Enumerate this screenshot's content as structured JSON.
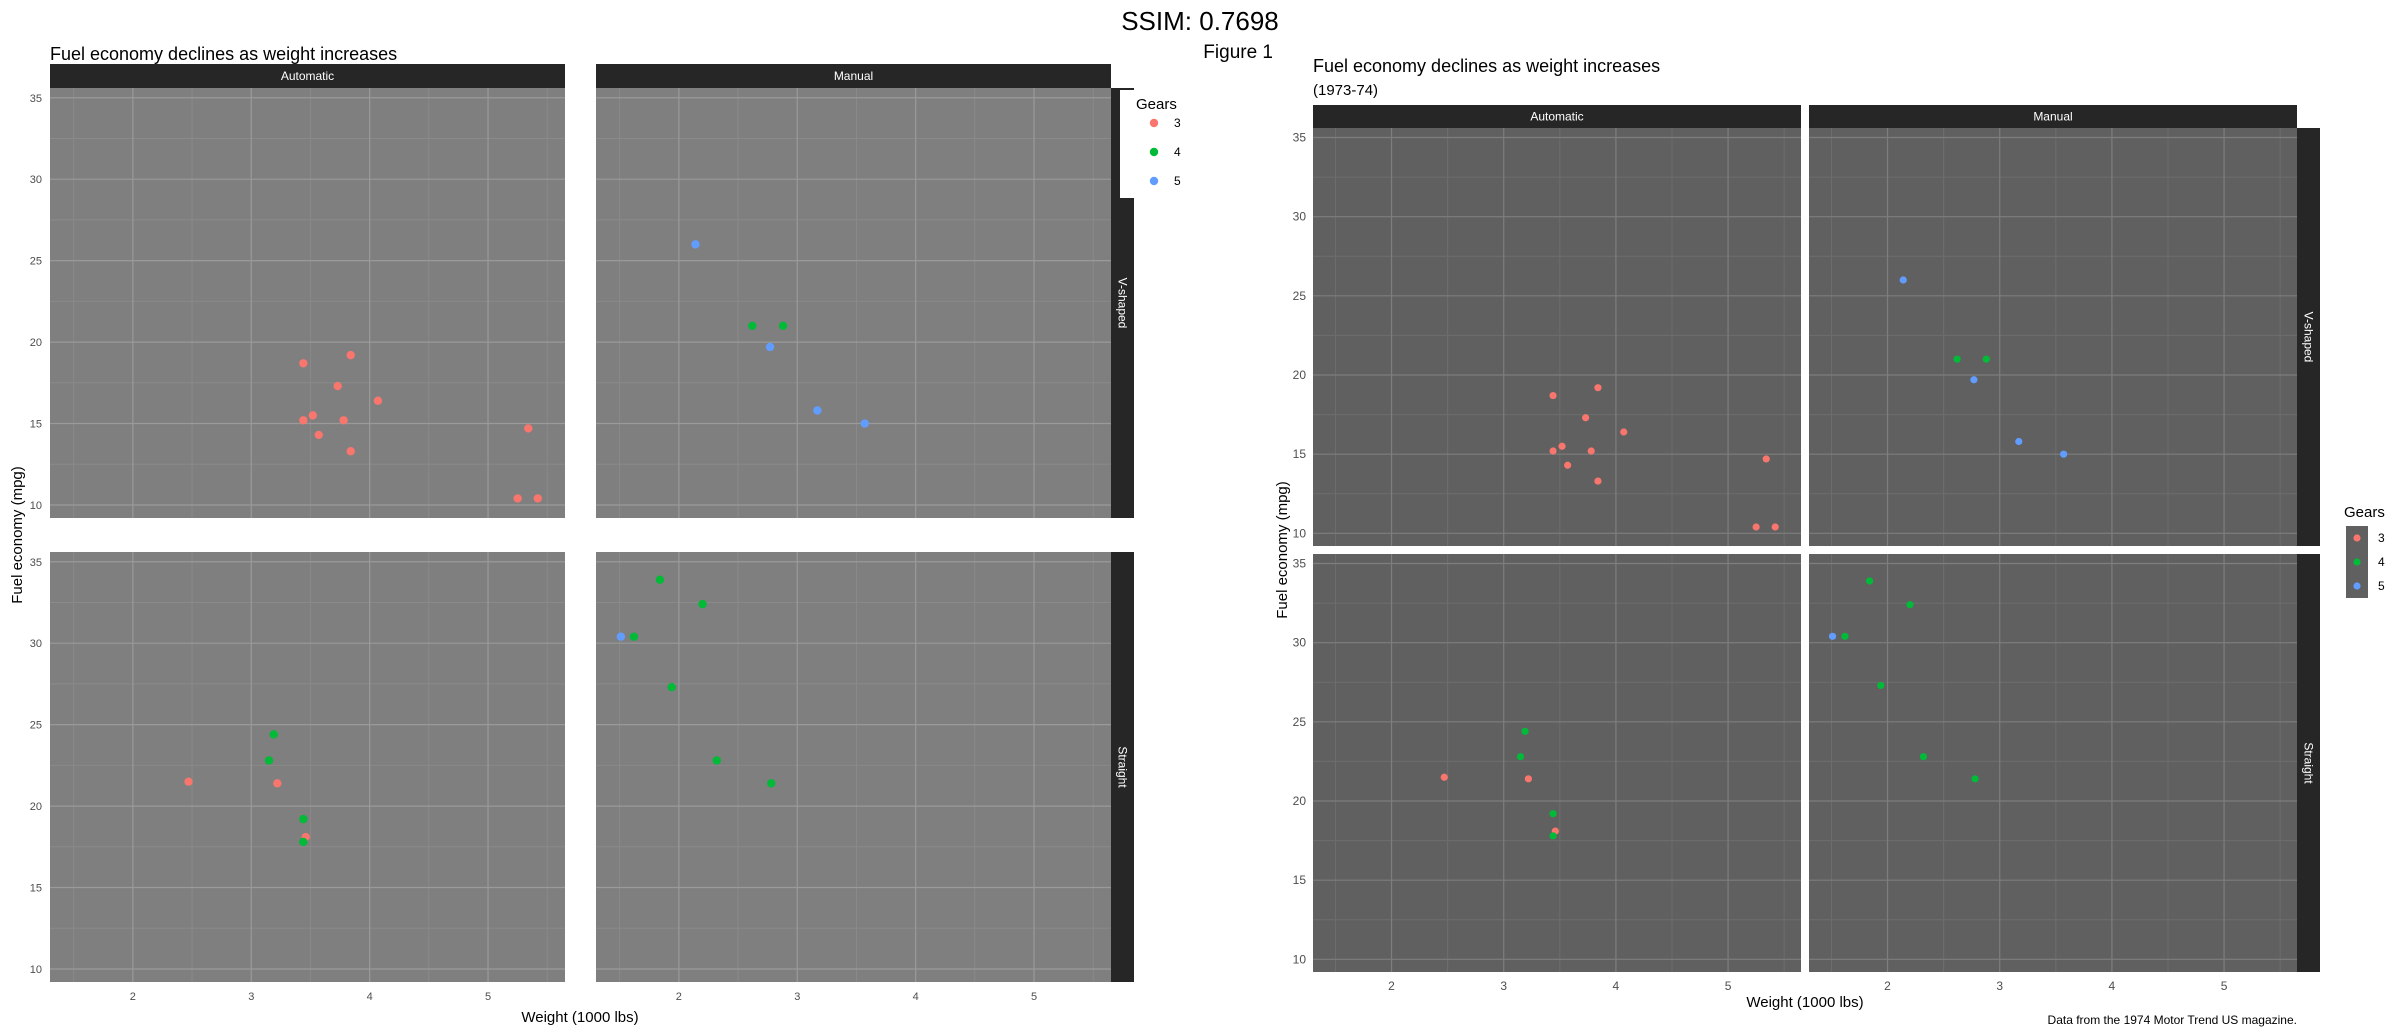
{
  "header": {
    "ssim": "SSIM: 0.7698",
    "figure_label": "Figure 1"
  },
  "chart_data": [
    {
      "type": "scatter",
      "title": "Fuel economy declines as weight increases",
      "subtitle": "",
      "caption": "",
      "xlabel": "Weight (1000 lbs)",
      "ylabel": "Fuel economy (mpg)",
      "xlim": [
        1.3,
        5.65
      ],
      "ylim": [
        9.2,
        35.6
      ],
      "xticks": [
        2,
        3,
        4,
        5
      ],
      "yticks": [
        10,
        15,
        20,
        25,
        30,
        35
      ],
      "grid": true,
      "legend_position": "right",
      "col_facets": [
        "Automatic",
        "Manual"
      ],
      "row_facets": [
        "V-shaped",
        "Straight"
      ],
      "legend": {
        "title": "Gears",
        "entries": [
          "3",
          "4",
          "5"
        ]
      },
      "colors": {
        "3": "#f8766d",
        "4": "#00ba38",
        "5": "#619cff"
      },
      "panels": [
        {
          "row": "V-shaped",
          "col": "Automatic",
          "points": [
            {
              "x": 3.44,
              "y": 18.7,
              "g": "3"
            },
            {
              "x": 3.84,
              "y": 19.2,
              "g": "3"
            },
            {
              "x": 3.73,
              "y": 17.3,
              "g": "3"
            },
            {
              "x": 4.07,
              "y": 16.4,
              "g": "3"
            },
            {
              "x": 3.44,
              "y": 15.2,
              "g": "3"
            },
            {
              "x": 3.52,
              "y": 15.5,
              "g": "3"
            },
            {
              "x": 3.78,
              "y": 15.2,
              "g": "3"
            },
            {
              "x": 3.57,
              "y": 14.3,
              "g": "3"
            },
            {
              "x": 3.84,
              "y": 13.3,
              "g": "3"
            },
            {
              "x": 5.34,
              "y": 14.7,
              "g": "3"
            },
            {
              "x": 5.25,
              "y": 10.4,
              "g": "3"
            },
            {
              "x": 5.42,
              "y": 10.4,
              "g": "3"
            }
          ]
        },
        {
          "row": "V-shaped",
          "col": "Manual",
          "points": [
            {
              "x": 2.14,
              "y": 26.0,
              "g": "5"
            },
            {
              "x": 2.62,
              "y": 21.0,
              "g": "4"
            },
            {
              "x": 2.88,
              "y": 21.0,
              "g": "4"
            },
            {
              "x": 2.77,
              "y": 19.7,
              "g": "5"
            },
            {
              "x": 3.17,
              "y": 15.8,
              "g": "5"
            },
            {
              "x": 3.57,
              "y": 15.0,
              "g": "5"
            }
          ]
        },
        {
          "row": "Straight",
          "col": "Automatic",
          "points": [
            {
              "x": 2.47,
              "y": 21.5,
              "g": "3"
            },
            {
              "x": 3.19,
              "y": 24.4,
              "g": "4"
            },
            {
              "x": 3.15,
              "y": 22.8,
              "g": "4"
            },
            {
              "x": 3.22,
              "y": 21.4,
              "g": "3"
            },
            {
              "x": 3.44,
              "y": 19.2,
              "g": "4"
            },
            {
              "x": 3.46,
              "y": 18.1,
              "g": "3"
            },
            {
              "x": 3.44,
              "y": 17.8,
              "g": "4"
            }
          ]
        },
        {
          "row": "Straight",
          "col": "Manual",
          "points": [
            {
              "x": 1.84,
              "y": 33.9,
              "g": "4"
            },
            {
              "x": 2.2,
              "y": 32.4,
              "g": "4"
            },
            {
              "x": 1.51,
              "y": 30.4,
              "g": "5"
            },
            {
              "x": 1.62,
              "y": 30.4,
              "g": "4"
            },
            {
              "x": 1.94,
              "y": 27.3,
              "g": "4"
            },
            {
              "x": 2.32,
              "y": 22.8,
              "g": "4"
            },
            {
              "x": 2.78,
              "y": 21.4,
              "g": "4"
            }
          ]
        }
      ]
    },
    {
      "type": "scatter",
      "title": "Fuel economy declines as weight increases",
      "subtitle": "(1973-74)",
      "caption": "Data from the 1974 Motor Trend US magazine.",
      "xlabel": "Weight (1000 lbs)",
      "ylabel": "Fuel economy (mpg)",
      "xlim": [
        1.3,
        5.65
      ],
      "ylim": [
        9.2,
        35.6
      ],
      "xticks": [
        2,
        3,
        4,
        5
      ],
      "yticks": [
        10,
        15,
        20,
        25,
        30,
        35
      ],
      "grid": true,
      "legend_position": "right",
      "col_facets": [
        "Automatic",
        "Manual"
      ],
      "row_facets": [
        "V-shaped",
        "Straight"
      ],
      "legend": {
        "title": "Gears",
        "entries": [
          "3",
          "4",
          "5"
        ]
      },
      "colors": {
        "3": "#f8766d",
        "4": "#00ba38",
        "5": "#619cff"
      },
      "panels": [
        {
          "row": "V-shaped",
          "col": "Automatic",
          "points": [
            {
              "x": 3.44,
              "y": 18.7,
              "g": "3"
            },
            {
              "x": 3.84,
              "y": 19.2,
              "g": "3"
            },
            {
              "x": 3.73,
              "y": 17.3,
              "g": "3"
            },
            {
              "x": 4.07,
              "y": 16.4,
              "g": "3"
            },
            {
              "x": 3.44,
              "y": 15.2,
              "g": "3"
            },
            {
              "x": 3.52,
              "y": 15.5,
              "g": "3"
            },
            {
              "x": 3.78,
              "y": 15.2,
              "g": "3"
            },
            {
              "x": 3.57,
              "y": 14.3,
              "g": "3"
            },
            {
              "x": 3.84,
              "y": 13.3,
              "g": "3"
            },
            {
              "x": 5.34,
              "y": 14.7,
              "g": "3"
            },
            {
              "x": 5.25,
              "y": 10.4,
              "g": "3"
            },
            {
              "x": 5.42,
              "y": 10.4,
              "g": "3"
            }
          ]
        },
        {
          "row": "V-shaped",
          "col": "Manual",
          "points": [
            {
              "x": 2.14,
              "y": 26.0,
              "g": "5"
            },
            {
              "x": 2.62,
              "y": 21.0,
              "g": "4"
            },
            {
              "x": 2.88,
              "y": 21.0,
              "g": "4"
            },
            {
              "x": 2.77,
              "y": 19.7,
              "g": "5"
            },
            {
              "x": 3.17,
              "y": 15.8,
              "g": "5"
            },
            {
              "x": 3.57,
              "y": 15.0,
              "g": "5"
            }
          ]
        },
        {
          "row": "Straight",
          "col": "Automatic",
          "points": [
            {
              "x": 2.47,
              "y": 21.5,
              "g": "3"
            },
            {
              "x": 3.19,
              "y": 24.4,
              "g": "4"
            },
            {
              "x": 3.15,
              "y": 22.8,
              "g": "4"
            },
            {
              "x": 3.22,
              "y": 21.4,
              "g": "3"
            },
            {
              "x": 3.44,
              "y": 19.2,
              "g": "4"
            },
            {
              "x": 3.46,
              "y": 18.1,
              "g": "3"
            },
            {
              "x": 3.44,
              "y": 17.8,
              "g": "4"
            }
          ]
        },
        {
          "row": "Straight",
          "col": "Manual",
          "points": [
            {
              "x": 1.84,
              "y": 33.9,
              "g": "4"
            },
            {
              "x": 2.2,
              "y": 32.4,
              "g": "4"
            },
            {
              "x": 1.51,
              "y": 30.4,
              "g": "5"
            },
            {
              "x": 1.62,
              "y": 30.4,
              "g": "4"
            },
            {
              "x": 1.94,
              "y": 27.3,
              "g": "4"
            },
            {
              "x": 2.32,
              "y": 22.8,
              "g": "4"
            },
            {
              "x": 2.78,
              "y": 21.4,
              "g": "4"
            }
          ]
        }
      ]
    }
  ]
}
